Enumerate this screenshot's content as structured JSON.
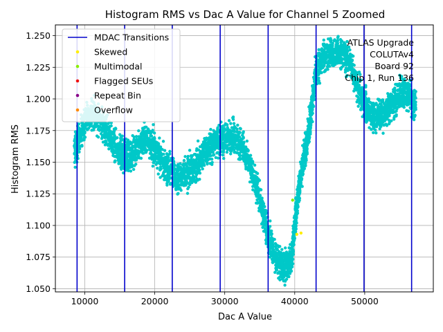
{
  "chart_data": {
    "type": "scatter",
    "title": "Histogram RMS vs Dac A Value for Channel 5 Zoomed",
    "xlabel": "Dac A Value",
    "ylabel": "Histogram RMS",
    "xlim": [
      5800,
      59800
    ],
    "ylim": [
      1.0475,
      1.2585
    ],
    "xticks": [
      10000,
      20000,
      30000,
      40000,
      50000
    ],
    "yticks": [
      1.05,
      1.075,
      1.1,
      1.125,
      1.15,
      1.175,
      1.2,
      1.225,
      1.25
    ],
    "ytick_format": 3,
    "grid": true,
    "legend_position": "top-left",
    "legend": [
      {
        "label": "MDAC Transitions",
        "kind": "line",
        "color": "#0000cc"
      },
      {
        "label": "Skewed",
        "kind": "dot",
        "color": "#ffee00"
      },
      {
        "label": "Multimodal",
        "kind": "dot",
        "color": "#88ee00"
      },
      {
        "label": "Flagged SEUs",
        "kind": "dot",
        "color": "#ee1111"
      },
      {
        "label": "Repeat Bin",
        "kind": "dot",
        "color": "#880088"
      },
      {
        "label": "Overflow",
        "kind": "dot",
        "color": "#ff8800"
      }
    ],
    "annotation": [
      "ATLAS Upgrade",
      "COLUTAv4",
      "Board 92",
      "Chip 1, Run 136"
    ],
    "mdac_transitions": [
      8900,
      15700,
      22500,
      29350,
      36200,
      43050,
      49900,
      56700
    ],
    "mdac_color": "#0000cc",
    "series": [
      {
        "name": "Histogram RMS",
        "color": "#00c8c8",
        "x_range": [
          8500,
          57300
        ],
        "x": [
          8500,
          9000,
          10000,
          11000,
          12000,
          13000,
          14000,
          15000,
          15700,
          16500,
          17500,
          18500,
          19500,
          20500,
          21500,
          22500,
          23500,
          24500,
          25500,
          26500,
          27500,
          28500,
          29500,
          30500,
          31500,
          32500,
          33500,
          34500,
          35500,
          36200,
          37000,
          38000,
          39000,
          39600,
          40000,
          40500,
          41000,
          41500,
          42000,
          42500,
          43050,
          44000,
          45000,
          46000,
          47000,
          48000,
          49000,
          49900,
          50500,
          51500,
          52500,
          53500,
          54500,
          55500,
          56500,
          57300
        ],
        "y": [
          1.158,
          1.165,
          1.183,
          1.188,
          1.185,
          1.175,
          1.165,
          1.157,
          1.155,
          1.155,
          1.162,
          1.168,
          1.165,
          1.155,
          1.148,
          1.142,
          1.138,
          1.14,
          1.145,
          1.152,
          1.16,
          1.165,
          1.168,
          1.17,
          1.168,
          1.163,
          1.15,
          1.13,
          1.11,
          1.09,
          1.078,
          1.07,
          1.068,
          1.075,
          1.1,
          1.125,
          1.145,
          1.16,
          1.175,
          1.195,
          1.222,
          1.232,
          1.236,
          1.237,
          1.235,
          1.228,
          1.21,
          1.196,
          1.19,
          1.187,
          1.188,
          1.192,
          1.2,
          1.205,
          1.203,
          1.193
        ],
        "noise": 0.006,
        "points_per_segment": 90
      }
    ],
    "highlight_points": [
      {
        "x": 39700,
        "y": 1.12,
        "color": "#88ee00"
      },
      {
        "x": 40300,
        "y": 1.093,
        "color": "#ffee00"
      },
      {
        "x": 40900,
        "y": 1.094,
        "color": "#ffee00"
      }
    ]
  }
}
